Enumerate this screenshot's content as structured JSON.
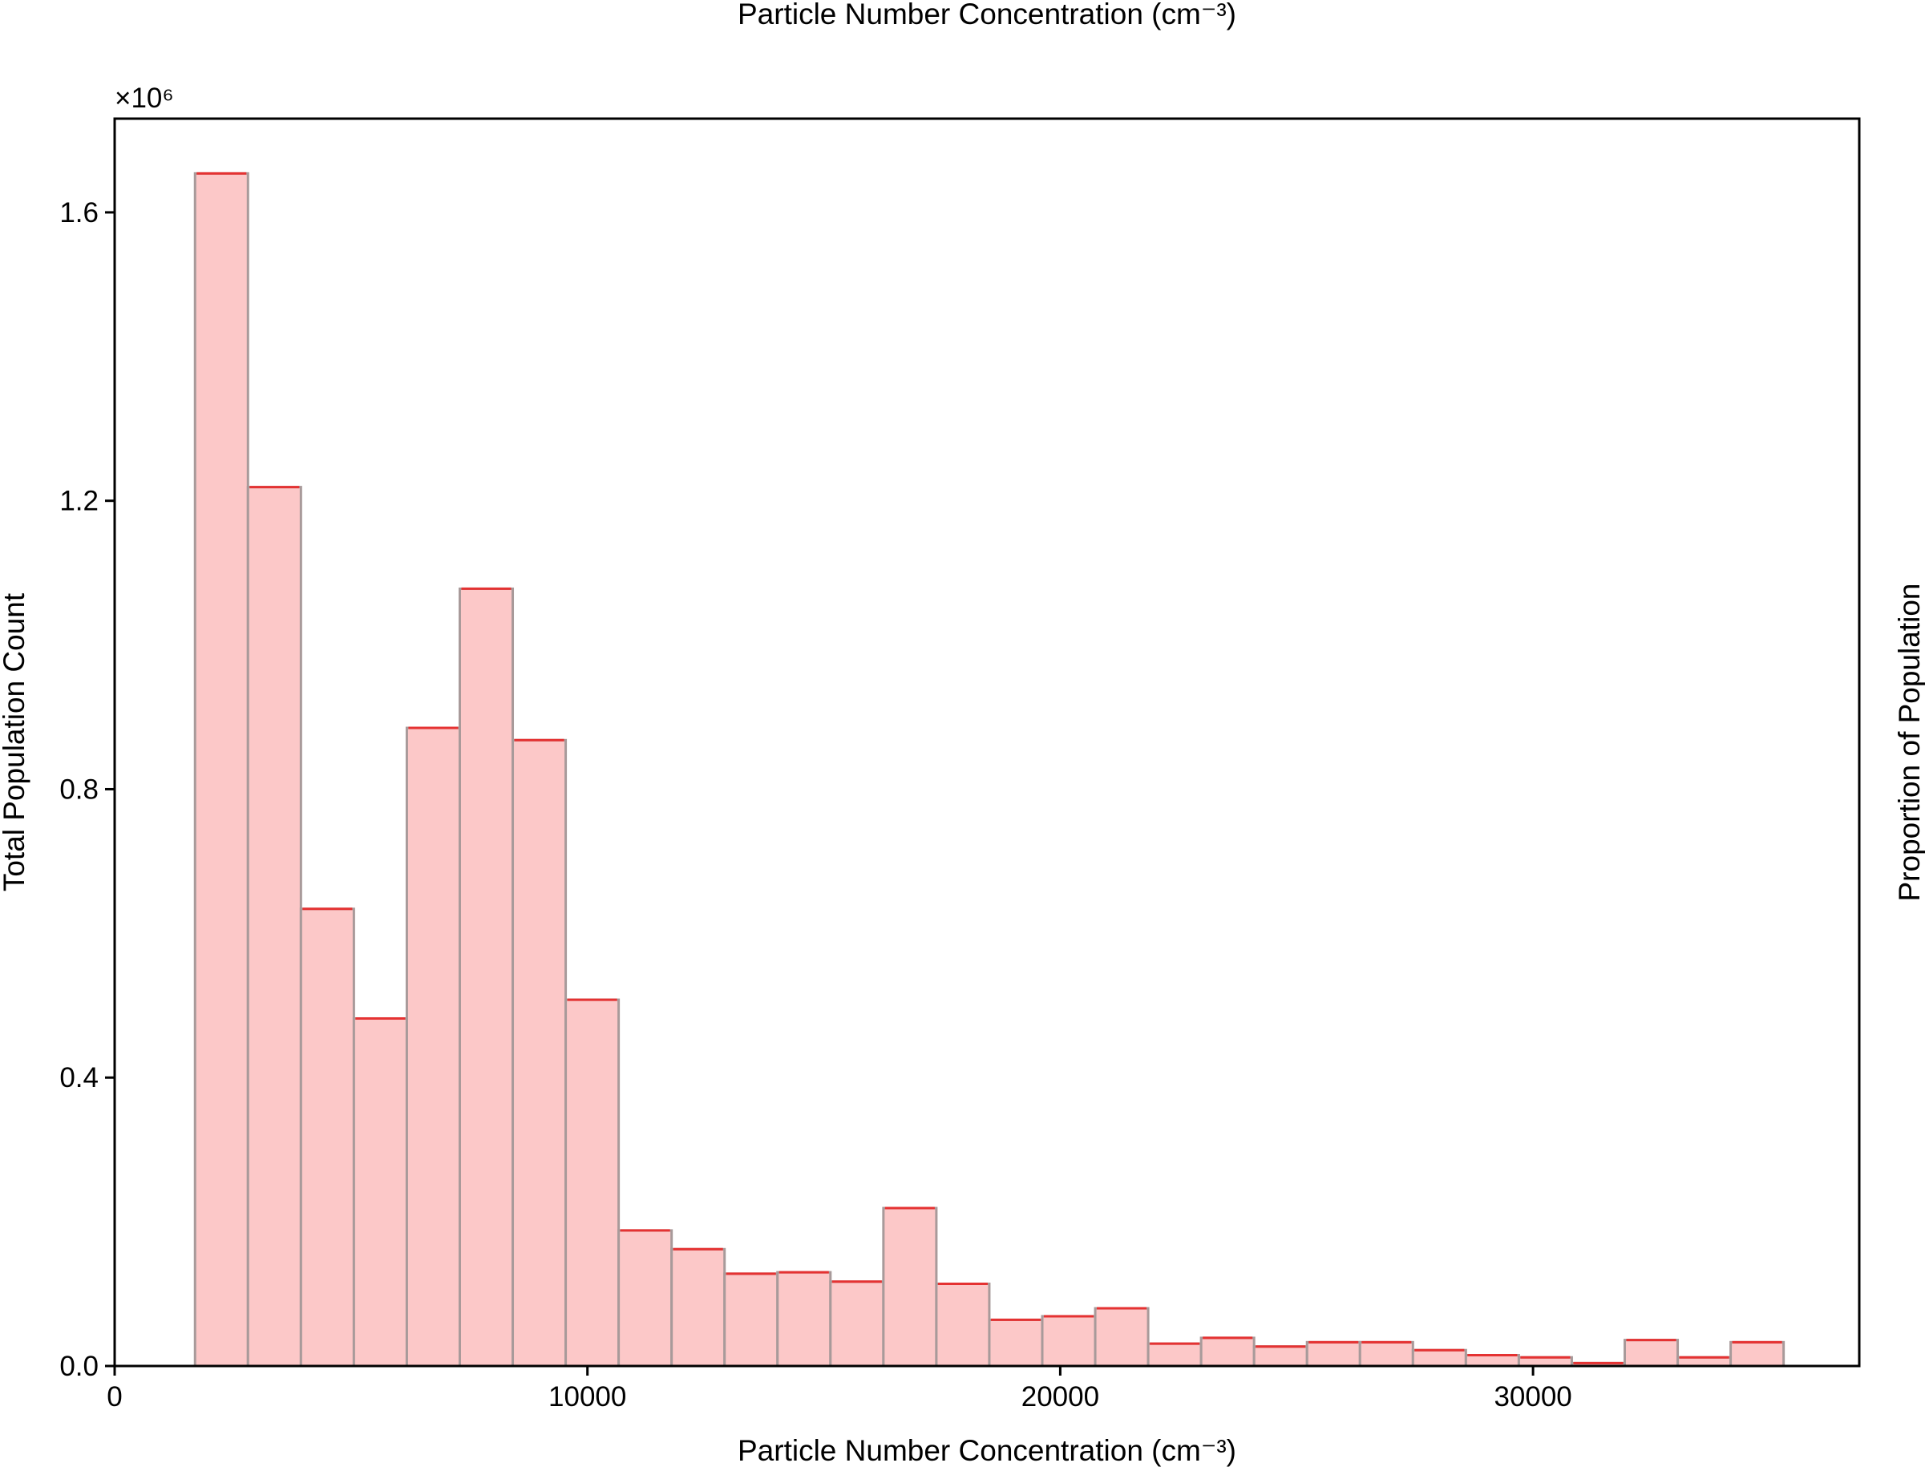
{
  "chart_data": {
    "type": "bar",
    "subtype": "histogram",
    "title": "",
    "top_label": "Particle Number Concentration (cm⁻³)",
    "xlabel": "Particle Number Concentration (cm⁻³)",
    "ylabel": "Total Population Count",
    "ylabel_right": "Proportion of Population",
    "y_multiplier": "×10⁶",
    "xlim": [
      0,
      36900
    ],
    "ylim": [
      0,
      1.73
    ],
    "xticks": [
      0,
      10000,
      20000,
      30000
    ],
    "xtick_labels": [
      "0",
      "10000",
      "20000",
      "30000"
    ],
    "yticks": [
      0.0,
      0.4,
      0.8,
      1.2,
      1.6
    ],
    "ytick_labels": [
      "0.0",
      "0.4",
      "0.8",
      "1.2",
      "1.6"
    ],
    "grid": false,
    "bin_edges": [
      1700,
      2820,
      3940,
      5060,
      6180,
      7300,
      8420,
      9540,
      10660,
      11780,
      12900,
      14020,
      15140,
      16260,
      17380,
      18500,
      19620,
      20740,
      21860,
      22980,
      24100,
      25220,
      26340,
      27460,
      28580,
      29700,
      30820,
      31940,
      33060,
      34180,
      35300
    ],
    "values": [
      1.654,
      1.219,
      0.634,
      0.482,
      0.885,
      1.078,
      0.868,
      0.508,
      0.188,
      0.162,
      0.128,
      0.13,
      0.117,
      0.219,
      0.114,
      0.064,
      0.069,
      0.08,
      0.031,
      0.039,
      0.027,
      0.033,
      0.033,
      0.022,
      0.015,
      0.012,
      0.004,
      0.036,
      0.012,
      0.033
    ],
    "colors": {
      "bar_fill": "#fcc8c8",
      "bar_edge": "#a89a9a",
      "bar_top": "#e53232",
      "axis": "#000000"
    }
  }
}
